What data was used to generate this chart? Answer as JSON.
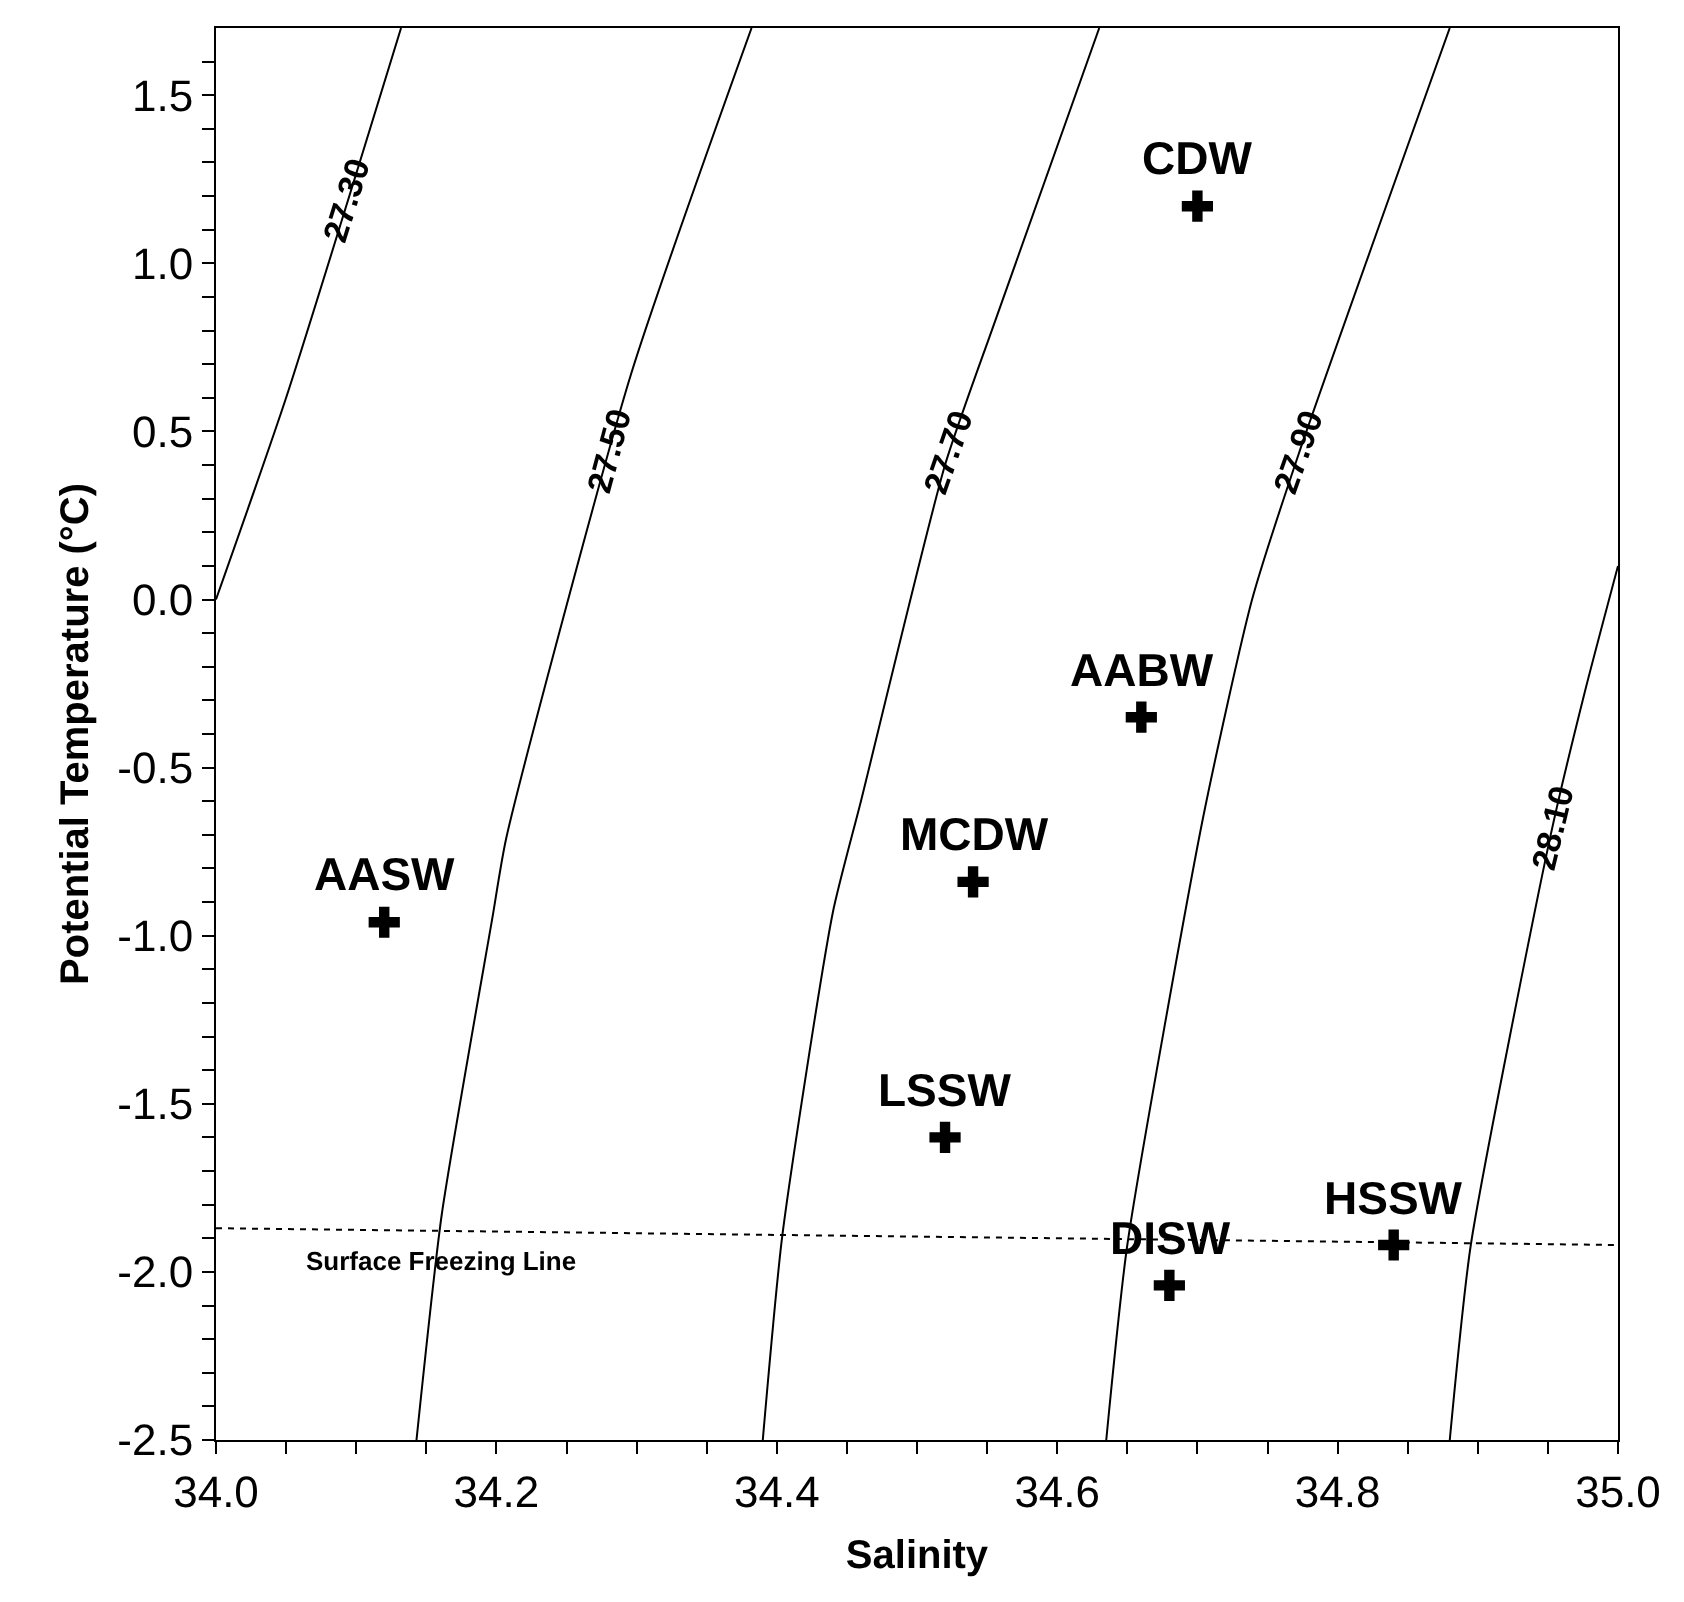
{
  "chart_data": {
    "type": "scatter",
    "xlabel": "Salinity",
    "ylabel": "Potential Temperature (°C)",
    "xlim": [
      34.0,
      35.0
    ],
    "ylim": [
      -2.5,
      1.7
    ],
    "xticks": [
      {
        "value": 34.0,
        "label": "34.0"
      },
      {
        "value": 34.05,
        "label": null
      },
      {
        "value": 34.1,
        "label": null
      },
      {
        "value": 34.15,
        "label": null
      },
      34.2,
      {
        "value": 34.25,
        "label": null
      },
      {
        "value": 34.3,
        "label": null
      },
      {
        "value": 34.35,
        "label": null
      },
      34.4,
      {
        "value": 34.45,
        "label": null
      },
      {
        "value": 34.5,
        "label": null
      },
      {
        "value": 34.55,
        "label": null
      },
      34.6,
      {
        "value": 34.65,
        "label": null
      },
      {
        "value": 34.7,
        "label": null
      },
      {
        "value": 34.75,
        "label": null
      },
      34.8,
      {
        "value": 34.85,
        "label": null
      },
      {
        "value": 34.9,
        "label": null
      },
      {
        "value": 34.95,
        "label": null
      },
      {
        "value": 35.0,
        "label": "35.0"
      }
    ],
    "yticks": [
      {
        "value": -2.5,
        "label": "-2.5"
      },
      {
        "value": -2.4,
        "label": null
      },
      {
        "value": -2.3,
        "label": null
      },
      {
        "value": -2.2,
        "label": null
      },
      {
        "value": -2.1,
        "label": null
      },
      {
        "value": -2.0,
        "label": "-2.0"
      },
      {
        "value": -1.9,
        "label": null
      },
      {
        "value": -1.8,
        "label": null
      },
      {
        "value": -1.7,
        "label": null
      },
      {
        "value": -1.6,
        "label": null
      },
      {
        "value": -1.5,
        "label": "-1.5"
      },
      {
        "value": -1.4,
        "label": null
      },
      {
        "value": -1.3,
        "label": null
      },
      {
        "value": -1.2,
        "label": null
      },
      {
        "value": -1.1,
        "label": null
      },
      {
        "value": -1.0,
        "label": "-1.0"
      },
      {
        "value": -0.9,
        "label": null
      },
      {
        "value": -0.8,
        "label": null
      },
      {
        "value": -0.7,
        "label": null
      },
      {
        "value": -0.6,
        "label": null
      },
      {
        "value": -0.5,
        "label": "-0.5"
      },
      {
        "value": -0.4,
        "label": null
      },
      {
        "value": -0.3,
        "label": null
      },
      {
        "value": -0.2,
        "label": null
      },
      {
        "value": -0.1,
        "label": null
      },
      {
        "value": 0.0,
        "label": "0.0"
      },
      {
        "value": 0.1,
        "label": null
      },
      {
        "value": 0.2,
        "label": null
      },
      {
        "value": 0.3,
        "label": null
      },
      {
        "value": 0.4,
        "label": null
      },
      0.5,
      {
        "value": 0.6,
        "label": null
      },
      {
        "value": 0.7,
        "label": null
      },
      {
        "value": 0.8,
        "label": null
      },
      {
        "value": 0.9,
        "label": null
      },
      {
        "value": 1.0,
        "label": "1.0"
      },
      {
        "value": 1.1,
        "label": null
      },
      {
        "value": 1.2,
        "label": null
      },
      {
        "value": 1.3,
        "label": null
      },
      {
        "value": 1.4,
        "label": null
      },
      1.5,
      {
        "value": 1.6,
        "label": null
      }
    ],
    "series": [
      {
        "name": "27.30",
        "type": "line",
        "color": "#000000",
        "x": [
          34.0,
          34.05,
          34.132
        ],
        "values": [
          0.0,
          0.6,
          1.7
        ]
      },
      {
        "name": "27.50",
        "type": "line",
        "color": "#000000",
        "x": [
          34.143,
          34.161,
          34.197,
          34.207,
          34.296,
          34.382
        ],
        "values": [
          -2.5,
          -1.83,
          -0.95,
          -0.71,
          0.67,
          1.7
        ]
      },
      {
        "name": "27.70",
        "type": "line",
        "color": "#000000",
        "x": [
          34.39,
          34.404,
          34.44,
          34.46,
          34.52,
          34.555,
          34.63
        ],
        "values": [
          -2.5,
          -1.89,
          -0.93,
          -0.6,
          0.4,
          0.82,
          1.7
        ]
      },
      {
        "name": "27.90",
        "type": "line",
        "color": "#000000",
        "x": [
          34.635,
          34.65,
          34.704,
          34.739,
          34.772,
          34.88
        ],
        "values": [
          -2.5,
          -1.92,
          -0.65,
          0.0,
          0.43,
          1.7
        ]
      },
      {
        "name": "28.10",
        "type": "line",
        "color": "#000000",
        "x": [
          34.88,
          34.895,
          34.952,
          34.976,
          35.0
        ],
        "values": [
          -2.5,
          -1.92,
          -0.7,
          -0.28,
          0.1
        ]
      },
      {
        "type": "line",
        "line_style": "dotted",
        "color": "#000000",
        "x": [
          34.0,
          35.0
        ],
        "values": [
          -1.87,
          -1.92
        ]
      },
      {
        "name": "CDW",
        "marker": "cross",
        "color": "#000000",
        "x": [
          34.7
        ],
        "values": [
          1.17
        ]
      },
      {
        "name": "AABW",
        "marker": "cross",
        "color": "#000000",
        "x": [
          34.66
        ],
        "values": [
          -0.35
        ]
      },
      {
        "name": "MCDW",
        "marker": "cross",
        "color": "#000000",
        "x": [
          34.54
        ],
        "values": [
          -0.84
        ]
      },
      {
        "name": "AASW",
        "marker": "cross",
        "color": "#000000",
        "x": [
          34.12
        ],
        "values": [
          -0.96
        ]
      },
      {
        "name": "LSSW",
        "marker": "cross",
        "color": "#000000",
        "x": [
          34.52
        ],
        "values": [
          -1.6
        ]
      },
      {
        "name": "DISW",
        "marker": "cross",
        "color": "#000000",
        "x": [
          34.68
        ],
        "values": [
          -2.04
        ]
      },
      {
        "name": "HSSW",
        "marker": "cross",
        "color": "#000000",
        "x": [
          34.84
        ],
        "values": [
          -1.92
        ]
      }
    ],
    "annotations": [
      {
        "text": "Surface Freezing Line",
        "x": 34.16,
        "y": -1.97
      }
    ]
  }
}
